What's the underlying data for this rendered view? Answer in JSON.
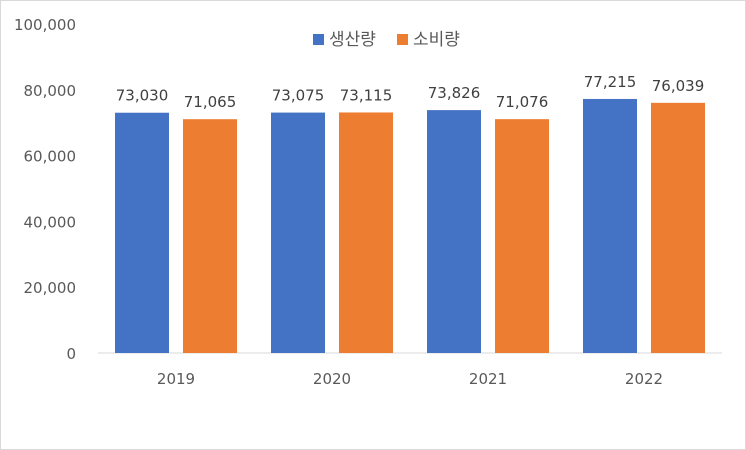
{
  "chart_data": {
    "type": "bar",
    "categories": [
      "2019",
      "2020",
      "2021",
      "2022"
    ],
    "series": [
      {
        "name": "생산량",
        "values": [
          73030,
          73075,
          73826,
          77215
        ],
        "labels": [
          "73,030",
          "73,075",
          "73,826",
          "77,215"
        ],
        "color": "#4472C4"
      },
      {
        "name": "소비량",
        "values": [
          71065,
          73115,
          71076,
          76039
        ],
        "labels": [
          "71,065",
          "73,115",
          "71,076",
          "76,039"
        ],
        "color": "#ED7D31"
      }
    ],
    "ylim": [
      0,
      100000
    ],
    "yticks": [
      0,
      20000,
      40000,
      60000,
      80000,
      100000
    ],
    "ytick_labels": [
      "0",
      "20,000",
      "40,000",
      "60,000",
      "80,000",
      "100,000"
    ],
    "grid": false,
    "legend_position": "top-center",
    "axis_color": "#d9d9d9"
  }
}
